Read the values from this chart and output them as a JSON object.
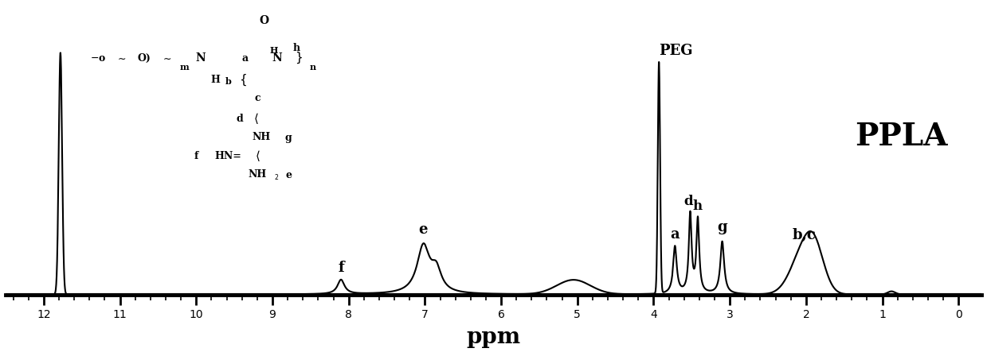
{
  "xlim": [
    12.5,
    -0.3
  ],
  "ylim": [
    -0.08,
    1.1
  ],
  "xlabel": "ppm",
  "xlabel_fontsize": 20,
  "background_color": "#ffffff",
  "line_color": "#000000",
  "tick_major": [
    0,
    1,
    2,
    3,
    4,
    5,
    6,
    7,
    8,
    9,
    10,
    11,
    12
  ],
  "ppla_label": "PPLA",
  "ppla_fontsize": 28,
  "spectrum_linewidth": 1.5,
  "baseline_linewidth": 3.0,
  "ruler_linewidth": 3.5,
  "label_fontsize": 13,
  "peg_label_fontsize": 13,
  "tick_label_fontsize": 16
}
